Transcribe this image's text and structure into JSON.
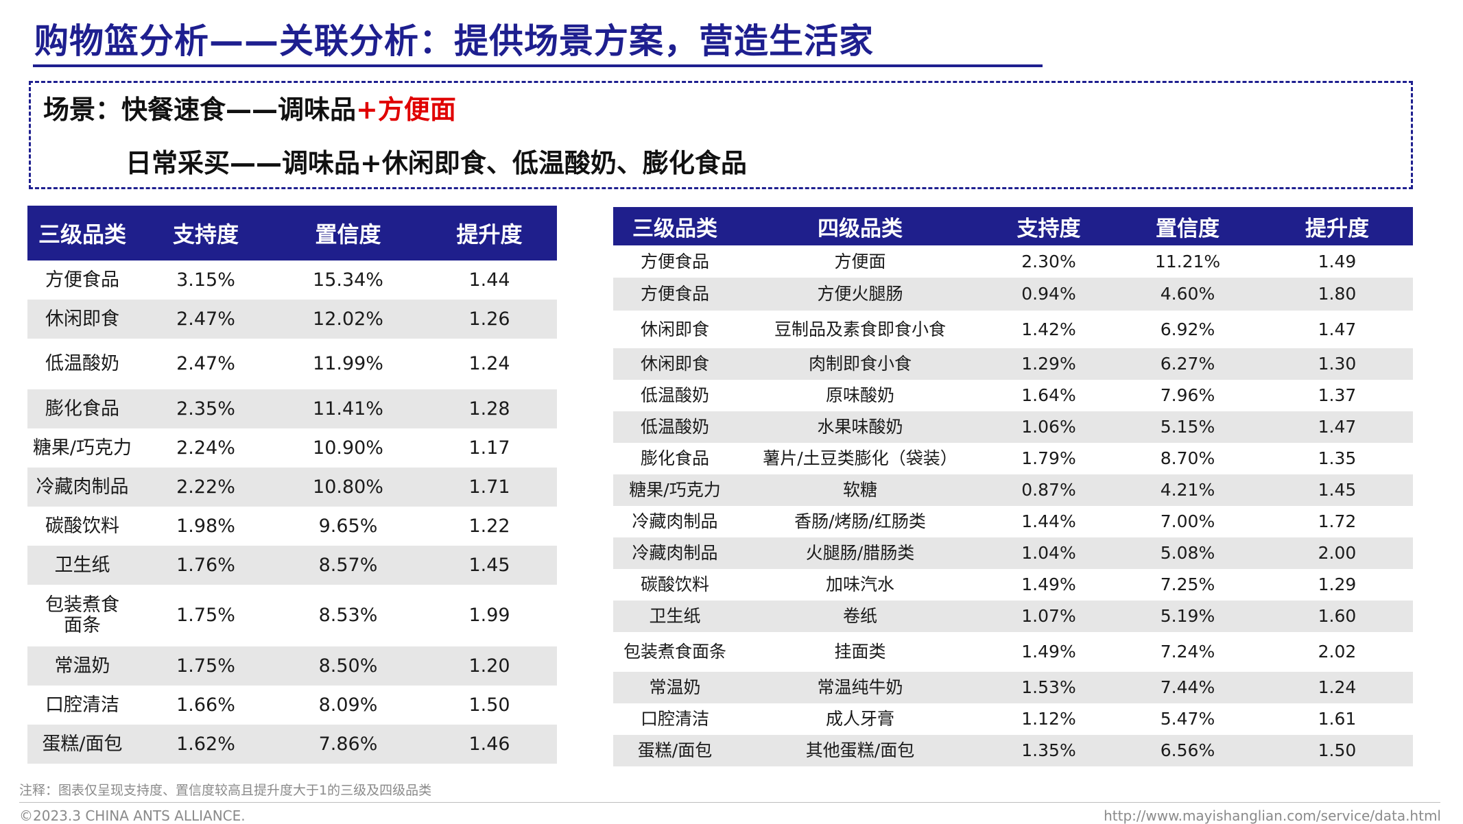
{
  "title": "购物篮分析——关联分析：提供场景方案，营造生活家",
  "scene": {
    "line1_prefix": "场景：快餐速食——调味品",
    "line1_highlight": "+方便面",
    "line2": "日常采买——调味品+休闲即食、低温酸奶、膨化食品",
    "highlight_color": "#e00000"
  },
  "colors": {
    "accent": "#1e1f8f",
    "header_bg": "#1f1f8c",
    "alt_row": "#e6e6e6"
  },
  "left_table": {
    "headers": [
      "三级品类",
      "支持度",
      "置信度",
      "提升度"
    ],
    "rows": [
      [
        "方便食品",
        "3.15%",
        "15.34%",
        "1.44"
      ],
      [
        "休闲即食",
        "2.47%",
        "12.02%",
        "1.26"
      ],
      [
        "低温酸奶",
        "2.47%",
        "11.99%",
        "1.24"
      ],
      [
        "膨化食品",
        "2.35%",
        "11.41%",
        "1.28"
      ],
      [
        "糖果/巧克力",
        "2.24%",
        "10.90%",
        "1.17"
      ],
      [
        "冷藏肉制品",
        "2.22%",
        "10.80%",
        "1.71"
      ],
      [
        "碳酸饮料",
        "1.98%",
        "9.65%",
        "1.22"
      ],
      [
        "卫生纸",
        "1.76%",
        "8.57%",
        "1.45"
      ],
      [
        "包装煮食面条",
        "1.75%",
        "8.53%",
        "1.99"
      ],
      [
        "常温奶",
        "1.75%",
        "8.50%",
        "1.20"
      ],
      [
        "口腔清洁",
        "1.66%",
        "8.09%",
        "1.50"
      ],
      [
        "蛋糕/面包",
        "1.62%",
        "7.86%",
        "1.46"
      ]
    ]
  },
  "right_table": {
    "headers": [
      "三级品类",
      "四级品类",
      "支持度",
      "置信度",
      "提升度"
    ],
    "rows": [
      [
        "方便食品",
        "方便面",
        "2.30%",
        "11.21%",
        "1.49"
      ],
      [
        "方便食品",
        "方便火腿肠",
        "0.94%",
        "4.60%",
        "1.80"
      ],
      [
        "休闲即食",
        "豆制品及素食即食小食",
        "1.42%",
        "6.92%",
        "1.47"
      ],
      [
        "休闲即食",
        "肉制即食小食",
        "1.29%",
        "6.27%",
        "1.30"
      ],
      [
        "低温酸奶",
        "原味酸奶",
        "1.64%",
        "7.96%",
        "1.37"
      ],
      [
        "低温酸奶",
        "水果味酸奶",
        "1.06%",
        "5.15%",
        "1.47"
      ],
      [
        "膨化食品",
        "薯片/土豆类膨化（袋装）",
        "1.79%",
        "8.70%",
        "1.35"
      ],
      [
        "糖果/巧克力",
        "软糖",
        "0.87%",
        "4.21%",
        "1.45"
      ],
      [
        "冷藏肉制品",
        "香肠/烤肠/红肠类",
        "1.44%",
        "7.00%",
        "1.72"
      ],
      [
        "冷藏肉制品",
        "火腿肠/腊肠类",
        "1.04%",
        "5.08%",
        "2.00"
      ],
      [
        "碳酸饮料",
        "加味汽水",
        "1.49%",
        "7.25%",
        "1.29"
      ],
      [
        "卫生纸",
        "卷纸",
        "1.07%",
        "5.19%",
        "1.60"
      ],
      [
        "包装煮食面条",
        "挂面类",
        "1.49%",
        "7.24%",
        "2.02"
      ],
      [
        "常温奶",
        "常温纯牛奶",
        "1.53%",
        "7.44%",
        "1.24"
      ],
      [
        "口腔清洁",
        "成人牙膏",
        "1.12%",
        "5.47%",
        "1.61"
      ],
      [
        "蛋糕/面包",
        "其他蛋糕/面包",
        "1.35%",
        "6.56%",
        "1.50"
      ]
    ]
  },
  "note": "注释：图表仅呈现支持度、置信度较高且提升度大于1的三级及四级品类",
  "footer": {
    "copyright": "©2023.3 CHINA ANTS ALLIANCE.",
    "url": "http://www.mayishanglian.com/service/data.html"
  }
}
